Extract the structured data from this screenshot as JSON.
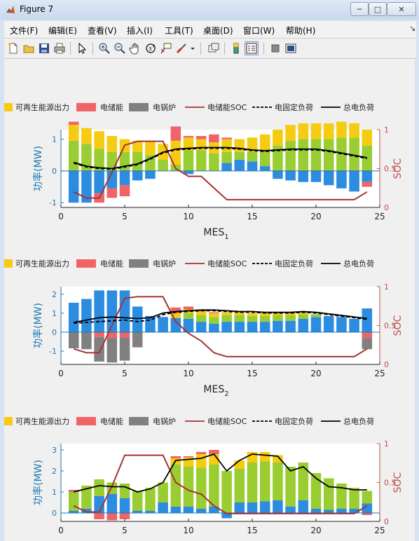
{
  "window": {
    "title": "Figure 7",
    "buttons": {
      "minimize": "─",
      "maximize": "□",
      "close": "✕"
    }
  },
  "menu": [
    "文件(F)",
    "编辑(E)",
    "查看(V)",
    "插入(I)",
    "工具(T)",
    "桌面(D)",
    "窗口(W)",
    "帮助(H)"
  ],
  "toolbar": [
    {
      "name": "new-figure-icon"
    },
    {
      "name": "open-file-icon"
    },
    {
      "name": "save-icon"
    },
    {
      "name": "print-icon"
    },
    {
      "name": "edit-plot-icon"
    },
    {
      "name": "zoom-in-icon"
    },
    {
      "name": "zoom-out-icon"
    },
    {
      "name": "pan-icon"
    },
    {
      "name": "rotate-3d-icon"
    },
    {
      "name": "data-cursor-icon"
    },
    {
      "name": "brush-icon"
    },
    {
      "name": "brush-dropdown-icon"
    },
    {
      "name": "link-plot-icon"
    },
    {
      "name": "colorbar-icon"
    },
    {
      "name": "legend-icon"
    },
    {
      "name": "hide-plot-tools-icon"
    },
    {
      "name": "show-plot-tools-icon"
    }
  ],
  "colors": {
    "renewable": "#f5cc11",
    "storage": "#f06468",
    "boiler": "#808080",
    "grid": "#2b8ce0",
    "green": "#9acd32",
    "soc": "#a83232",
    "fixed_load": "#000000",
    "total_load": "#000000",
    "left_axis": "#1f77b4",
    "right_axis": "#c0504d"
  },
  "legend": {
    "renewable": "可再生能源出力",
    "storage": "电储能",
    "boiler": "电锅炉",
    "soc": "电储能SOC",
    "fixed_load": "电固定负荷",
    "total_load": "总电负荷"
  },
  "chart_data": [
    {
      "type": "bar",
      "xlabel": "MES",
      "xlabel_sub": "1",
      "ylabel": "功率(MW)",
      "ylabel_right": "SOC",
      "x": [
        1,
        2,
        3,
        4,
        5,
        6,
        7,
        8,
        9,
        10,
        11,
        12,
        13,
        14,
        15,
        16,
        17,
        18,
        19,
        20,
        21,
        22,
        23,
        24
      ],
      "xlim": [
        0,
        25
      ],
      "xticks": [
        0,
        5,
        10,
        15,
        20,
        25
      ],
      "ylim": [
        -1.15,
        1.3
      ],
      "yticks": [
        -1,
        0,
        1
      ],
      "ylim_right": [
        0,
        1
      ],
      "yticks_right": [
        0,
        0.5,
        1
      ],
      "series": {
        "grid": [
          -1.0,
          -1.0,
          -0.7,
          -0.55,
          -0.45,
          -0.3,
          -0.25,
          0,
          0,
          -0.1,
          0,
          0,
          0.25,
          0.35,
          0.3,
          0.15,
          -0.25,
          -0.3,
          -0.35,
          -0.35,
          -0.45,
          -0.55,
          -0.65,
          -0.35
        ],
        "green": [
          0.95,
          0.85,
          0.7,
          0.6,
          0.6,
          0.6,
          0.5,
          0.35,
          0.2,
          0.65,
          0.65,
          0.55,
          0.35,
          0.25,
          0.3,
          0.5,
          0.8,
          0.95,
          1.0,
          1.0,
          1.0,
          1.05,
          1.05,
          0.8
        ],
        "renewable": [
          0.5,
          0.5,
          0.55,
          0.5,
          0.4,
          0.35,
          0.45,
          0.5,
          0.75,
          0.4,
          0.35,
          0.35,
          0.4,
          0.4,
          0.45,
          0.5,
          0.5,
          0.5,
          0.5,
          0.5,
          0.5,
          0.5,
          0.45,
          0.5
        ],
        "storage": [
          0.1,
          0,
          -0.3,
          -0.3,
          -0.35,
          0,
          0,
          0,
          0.45,
          0.05,
          0.1,
          0.25,
          0.05,
          0,
          0,
          0,
          0,
          0,
          0,
          0,
          0,
          0,
          0,
          -0.15
        ],
        "boiler": [
          0,
          0,
          0,
          0,
          0,
          0,
          0,
          0,
          0,
          0,
          0,
          0,
          0,
          0,
          0,
          0,
          0,
          0,
          0,
          0,
          0,
          0,
          0,
          0
        ],
        "soc": [
          0.2,
          0.12,
          0.12,
          0.45,
          0.8,
          0.85,
          0.85,
          0.85,
          0.5,
          0.4,
          0.4,
          0.25,
          0.1,
          0.1,
          0.1,
          0.1,
          0.1,
          0.1,
          0.1,
          0.1,
          0.1,
          0.1,
          0.1,
          0.2
        ],
        "fixed_load": [
          0.57,
          0.52,
          0.5,
          0.49,
          0.52,
          0.55,
          0.62,
          0.7,
          0.74,
          0.75,
          0.76,
          0.76,
          0.76,
          0.75,
          0.73,
          0.72,
          0.73,
          0.74,
          0.74,
          0.74,
          0.72,
          0.69,
          0.66,
          0.63
        ],
        "total_load": [
          0.58,
          0.53,
          0.51,
          0.5,
          0.53,
          0.56,
          0.63,
          0.71,
          0.75,
          0.76,
          0.77,
          0.77,
          0.77,
          0.76,
          0.74,
          0.73,
          0.74,
          0.75,
          0.75,
          0.75,
          0.73,
          0.7,
          0.67,
          0.64
        ]
      }
    },
    {
      "type": "bar",
      "xlabel": "MES",
      "xlabel_sub": "2",
      "ylabel": "功率(MW)",
      "ylabel_right": "SOC",
      "x": [
        1,
        2,
        3,
        4,
        5,
        6,
        7,
        8,
        9,
        10,
        11,
        12,
        13,
        14,
        15,
        16,
        17,
        18,
        19,
        20,
        21,
        22,
        23,
        24
      ],
      "xlim": [
        0,
        25
      ],
      "xticks": [
        0,
        5,
        10,
        15,
        20,
        25
      ],
      "ylim": [
        -1.7,
        2.4
      ],
      "yticks": [
        -1,
        0,
        1,
        2
      ],
      "ylim_right": [
        0,
        1
      ],
      "yticks_right": [
        0,
        0.5,
        1
      ],
      "series": {
        "grid": [
          1.55,
          1.75,
          2.2,
          2.2,
          2.2,
          1.35,
          0.85,
          0.8,
          0.75,
          0.7,
          0.55,
          0.45,
          0.55,
          0.55,
          0.55,
          0.55,
          0.6,
          0.6,
          0.7,
          0.8,
          0.85,
          0.8,
          0.7,
          1.25
        ],
        "green": [
          0,
          0,
          0,
          0,
          0,
          0,
          0,
          0,
          0,
          0.3,
          0.35,
          0.35,
          0.35,
          0.35,
          0.3,
          0.3,
          0.3,
          0.3,
          0.25,
          0.15,
          0,
          0,
          0,
          0
        ],
        "renewable": [
          0,
          0,
          0,
          0,
          0,
          0,
          0,
          0,
          0.25,
          0.2,
          0.2,
          0.2,
          0.15,
          0.15,
          0.15,
          0.15,
          0.15,
          0.15,
          0.1,
          0,
          0,
          0,
          0,
          0
        ],
        "storage": [
          0,
          0,
          -0.25,
          -0.3,
          -0.3,
          0,
          0,
          0,
          0.3,
          0.15,
          0.1,
          0.05,
          0,
          0,
          0,
          0,
          0,
          0,
          0,
          0,
          0,
          0,
          0,
          -0.3
        ],
        "boiler": [
          -0.85,
          -0.9,
          -1.3,
          -1.3,
          -1.2,
          -0.8,
          0,
          0,
          0,
          0,
          0,
          0,
          0,
          0,
          0,
          0,
          0,
          0,
          0,
          0,
          0,
          0,
          0,
          -0.6
        ],
        "soc": [
          0.2,
          0.15,
          0.15,
          0.5,
          0.85,
          0.87,
          0.87,
          0.87,
          0.55,
          0.4,
          0.3,
          0.15,
          0.1,
          0.1,
          0.1,
          0.1,
          0.1,
          0.1,
          0.1,
          0.1,
          0.1,
          0.1,
          0.1,
          0.2
        ],
        "fixed_load": [
          0.53,
          0.54,
          0.55,
          0.56,
          0.57,
          0.55,
          0.57,
          0.64,
          0.67,
          0.68,
          0.69,
          0.69,
          0.68,
          0.67,
          0.67,
          0.66,
          0.66,
          0.66,
          0.67,
          0.66,
          0.64,
          0.62,
          0.6,
          0.58
        ],
        "total_load": [
          0.54,
          0.57,
          0.6,
          0.61,
          0.6,
          0.59,
          0.6,
          0.66,
          0.68,
          0.69,
          0.7,
          0.7,
          0.69,
          0.68,
          0.68,
          0.67,
          0.67,
          0.67,
          0.68,
          0.67,
          0.65,
          0.63,
          0.61,
          0.59
        ]
      }
    },
    {
      "type": "bar",
      "xlabel": "MES",
      "xlabel_sub": "3",
      "ylabel": "功率(MW)",
      "ylabel_right": "SOC",
      "x": [
        1,
        2,
        3,
        4,
        5,
        6,
        7,
        8,
        9,
        10,
        11,
        12,
        13,
        14,
        15,
        16,
        17,
        18,
        19,
        20,
        21,
        22,
        23,
        24
      ],
      "xlim": [
        0,
        25
      ],
      "xticks": [
        0,
        5,
        10,
        15,
        20,
        25
      ],
      "ylim": [
        -0.4,
        3.3
      ],
      "yticks": [
        0,
        1,
        2,
        3
      ],
      "ylim_right": [
        0,
        1
      ],
      "yticks_right": [
        0,
        0.5,
        1
      ],
      "series": {
        "grid": [
          0.1,
          0.2,
          0.8,
          0.9,
          0.7,
          0.1,
          0.1,
          0.5,
          0.3,
          0.3,
          0.2,
          0.3,
          -0.25,
          0.5,
          0.5,
          0.55,
          0.6,
          0.3,
          0.6,
          0.2,
          0.15,
          0.2,
          0.2,
          0.45
        ],
        "green": [
          0.9,
          1.1,
          0.8,
          0.55,
          0.7,
          0.95,
          1.1,
          0.95,
          2.0,
          1.9,
          1.95,
          2.0,
          2.0,
          1.6,
          1.9,
          1.9,
          1.8,
          1.9,
          1.8,
          1.7,
          1.5,
          1.2,
          1.0,
          0.6
        ],
        "renewable": [
          0,
          0,
          0,
          0,
          0,
          0,
          0,
          0,
          0.3,
          0.45,
          0.65,
          0.5,
          0,
          0.4,
          0.5,
          0.45,
          0.35,
          0,
          0,
          0,
          0,
          0,
          0,
          0
        ],
        "storage": [
          0.1,
          0,
          -0.3,
          -0.35,
          -0.3,
          0,
          0,
          0,
          0.1,
          0.05,
          0.1,
          0.2,
          0,
          0,
          0,
          0,
          0,
          0,
          0,
          0,
          0,
          0,
          0,
          -0.1
        ],
        "boiler": [
          0,
          0,
          0,
          0,
          0,
          0,
          0,
          0,
          0,
          0,
          0,
          0,
          0,
          0,
          0,
          0,
          0,
          0,
          0,
          0,
          0,
          0,
          0,
          0
        ],
        "soc": [
          0.2,
          0.12,
          0.12,
          0.45,
          0.85,
          0.85,
          0.85,
          0.85,
          0.5,
          0.4,
          0.35,
          0.2,
          0.1,
          0.1,
          0.1,
          0.1,
          0.1,
          0.1,
          0.1,
          0.1,
          0.1,
          0.1,
          0.1,
          0.2
        ],
        "fixed_load": [],
        "total_load": [
          1.0,
          1.15,
          1.3,
          1.25,
          1.25,
          1.0,
          1.15,
          1.45,
          2.5,
          2.55,
          2.6,
          2.8,
          2.0,
          2.5,
          2.8,
          2.75,
          2.7,
          2.0,
          2.2,
          1.65,
          1.25,
          1.2,
          1.1,
          1.1
        ]
      }
    }
  ]
}
